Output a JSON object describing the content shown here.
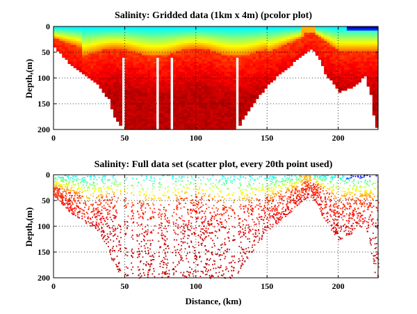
{
  "chart_data": [
    {
      "type": "heatmap",
      "title": "Salinity: Gridded data (1km x 4m) (pcolor plot)",
      "xlabel": "",
      "ylabel": "Depth,(m)",
      "xlim": [
        0,
        228
      ],
      "ylim": [
        0,
        200
      ],
      "y_reversed": true,
      "xticks": [
        0,
        50,
        100,
        150,
        200
      ],
      "yticks": [
        0,
        50,
        100,
        150,
        200
      ],
      "grid": true,
      "colormap": "jet",
      "bottom_depth_profile": {
        "distance_km": [
          0,
          10,
          20,
          30,
          38,
          42,
          48,
          52,
          60,
          80,
          100,
          120,
          128,
          135,
          150,
          165,
          175,
          180,
          185,
          190,
          200,
          210,
          218,
          222,
          225,
          228
        ],
        "depth_m": [
          40,
          70,
          90,
          110,
          140,
          175,
          200,
          200,
          200,
          200,
          200,
          200,
          200,
          165,
          110,
          75,
          50,
          42,
          55,
          90,
          125,
          115,
          95,
          130,
          190,
          200
        ]
      },
      "gaps_distance_km": [
        48,
        53,
        57,
        72,
        82,
        128
      ]
    },
    {
      "type": "scatter",
      "title": "Salinity: Full data set (scatter plot, every 20th point used)",
      "xlabel": "Distance, (km)",
      "ylabel": "Depth,(m)",
      "xlim": [
        0,
        228
      ],
      "ylim": [
        0,
        200
      ],
      "y_reversed": true,
      "xticks": [
        0,
        50,
        100,
        150,
        200
      ],
      "yticks": [
        0,
        50,
        100,
        150,
        200
      ],
      "grid": true,
      "colormap": "jet",
      "bottom_depth_profile": {
        "distance_km": [
          0,
          10,
          20,
          30,
          38,
          42,
          48,
          52,
          60,
          80,
          100,
          120,
          128,
          135,
          150,
          165,
          175,
          180,
          185,
          190,
          200,
          210,
          218,
          222,
          225,
          228
        ],
        "depth_m": [
          40,
          70,
          90,
          110,
          140,
          175,
          200,
          200,
          200,
          200,
          200,
          200,
          200,
          165,
          110,
          75,
          50,
          42,
          55,
          90,
          125,
          115,
          95,
          130,
          190,
          200
        ]
      },
      "gaps_distance_km": [
        48,
        53,
        57,
        72,
        82,
        128
      ]
    }
  ]
}
